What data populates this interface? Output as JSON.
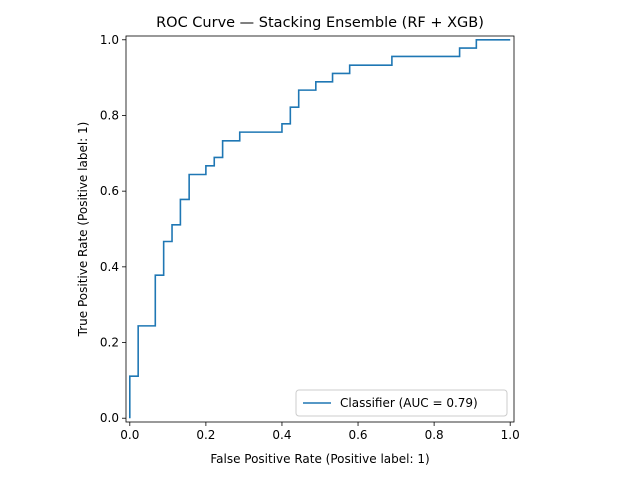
{
  "chart_data": {
    "type": "line",
    "title": "ROC Curve — Stacking Ensemble (RF + XGB)",
    "xlabel": "False Positive Rate (Positive label: 1)",
    "ylabel": "True Positive Rate (Positive label: 1)",
    "xlim": [
      -0.01,
      1.01
    ],
    "ylim": [
      -0.01,
      1.01
    ],
    "xticks": [
      0.0,
      0.2,
      0.4,
      0.6,
      0.8,
      1.0
    ],
    "yticks": [
      0.0,
      0.2,
      0.4,
      0.6,
      0.8,
      1.0
    ],
    "xtick_labels": [
      "0.0",
      "0.2",
      "0.4",
      "0.6",
      "0.8",
      "1.0"
    ],
    "ytick_labels": [
      "0.0",
      "0.2",
      "0.4",
      "0.6",
      "0.8",
      "1.0"
    ],
    "grid": false,
    "legend_position": "lower-right",
    "series": [
      {
        "name": "Classifier (AUC = 0.79)",
        "color": "#1f77b4",
        "step": true,
        "x": [
          0.0,
          0.0,
          0.022,
          0.022,
          0.067,
          0.067,
          0.089,
          0.089,
          0.111,
          0.111,
          0.133,
          0.133,
          0.156,
          0.156,
          0.2,
          0.2,
          0.222,
          0.222,
          0.244,
          0.244,
          0.289,
          0.289,
          0.4,
          0.4,
          0.422,
          0.422,
          0.444,
          0.444,
          0.489,
          0.489,
          0.533,
          0.533,
          0.578,
          0.578,
          0.689,
          0.689,
          0.867,
          0.867,
          0.911,
          0.911,
          1.0
        ],
        "y": [
          0.0,
          0.111,
          0.111,
          0.244,
          0.244,
          0.378,
          0.378,
          0.467,
          0.467,
          0.511,
          0.511,
          0.578,
          0.578,
          0.644,
          0.644,
          0.667,
          0.667,
          0.689,
          0.689,
          0.733,
          0.733,
          0.756,
          0.756,
          0.778,
          0.778,
          0.822,
          0.822,
          0.867,
          0.867,
          0.889,
          0.889,
          0.911,
          0.911,
          0.933,
          0.933,
          0.956,
          0.956,
          0.978,
          0.978,
          1.0,
          1.0
        ]
      }
    ]
  }
}
